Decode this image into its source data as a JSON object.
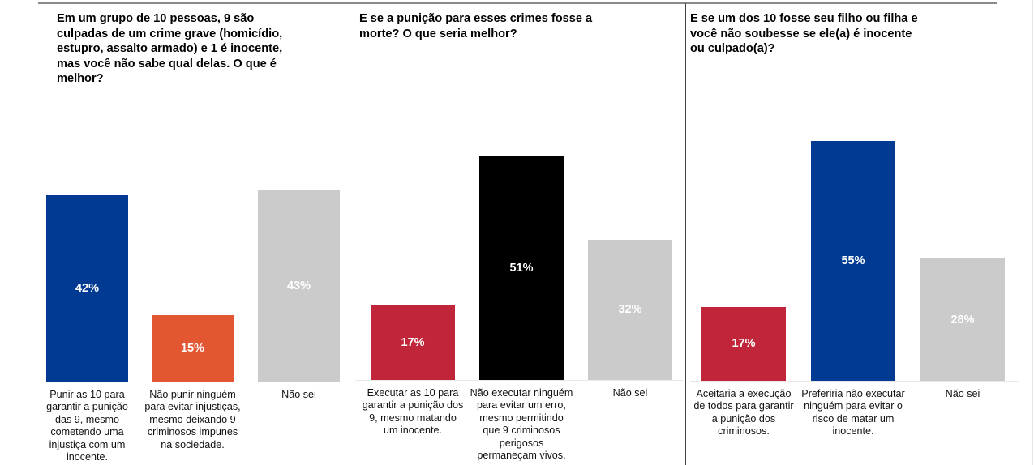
{
  "chart_data": [
    {
      "type": "bar",
      "title": "Em um grupo de 10 pessoas, 9 são culpadas de um crime grave (homicídio, estupro, assalto armado) e 1 é inocente, mas você não sabe qual delas. O que é melhor?",
      "title_lines": "Em um grupo de 10 pessoas, 9 são\nculpadas de um crime grave (homicídio,\nestupro, assalto armado) e 1 é inocente,\nmas você não sabe qual delas. O que é\nmelhor?",
      "xlabel": "",
      "ylabel": "",
      "ylim": [
        0,
        60
      ],
      "grid": false,
      "categories": [
        "Punir as 10 para\ngarantir a punição\ndas 9, mesmo\ncometendo uma\ninjustiça com um\ninocente.",
        "Não punir ninguém\npara evitar injustiças,\nmesmo deixando 9\ncriminosos impunes\nna sociedade.",
        "Não sei"
      ],
      "values": [
        42,
        15,
        43
      ],
      "value_labels": [
        "42%",
        "15%",
        "43%"
      ],
      "colors": [
        "#003a93",
        "#e35632",
        "#cbcbcb"
      ]
    },
    {
      "type": "bar",
      "title": "E se a punição para esses crimes fosse a morte? O que seria melhor?",
      "title_lines": "E se a punição para esses crimes fosse a\nmorte? O que seria melhor?",
      "xlabel": "",
      "ylabel": "",
      "ylim": [
        0,
        60
      ],
      "grid": false,
      "categories": [
        "Executar as 10 para\ngarantir a punição dos\n9, mesmo matando\num inocente.",
        "Não executar ninguém\npara evitar um erro,\nmesmo permitindo\nque 9 criminosos\nperigosos\npermaneçam vivos.",
        "Não sei"
      ],
      "values": [
        17,
        51,
        32
      ],
      "value_labels": [
        "17%",
        "51%",
        "32%"
      ],
      "colors": [
        "#c1253a",
        "#000000",
        "#cbcbcb"
      ]
    },
    {
      "type": "bar",
      "title": "E se um dos 10 fosse seu filho ou filha e você não soubesse se ele(a) é inocente ou culpado(a)?",
      "title_lines": " E se um dos 10 fosse seu filho ou filha e\nvocê não soubesse se ele(a) é inocente\nou culpado(a)?",
      "xlabel": "",
      "ylabel": "",
      "ylim": [
        0,
        60
      ],
      "grid": false,
      "categories": [
        "Aceitaria a execução\nde todos para garantir\na punição dos\ncriminosos.",
        "Preferiria não executar\nninguém para evitar o\nrisco de matar um\ninocente.",
        "Não sei"
      ],
      "values": [
        17,
        55,
        28
      ],
      "value_labels": [
        "17%",
        "55%",
        "28%"
      ],
      "colors": [
        "#c1253a",
        "#003a93",
        "#cbcbcb"
      ]
    }
  ]
}
